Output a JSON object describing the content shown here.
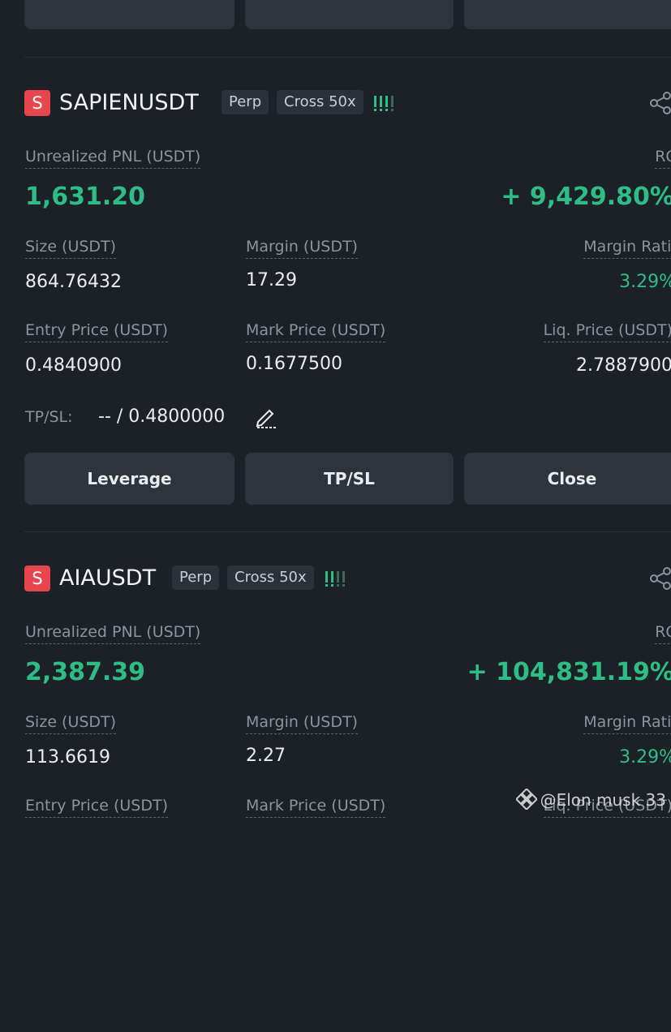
{
  "positions": [
    {
      "badge": "S",
      "symbol": "SAPIENUSDT",
      "contract_type": "Perp",
      "margin_mode": "Cross 50x",
      "pnl_label": "Unrealized PNL (USDT)",
      "pnl": "1,631.20",
      "roi_label": "ROI",
      "roi": "+ 9,429.80%",
      "fields": [
        {
          "label": "Size (USDT)",
          "value": "864.76432"
        },
        {
          "label": "Margin (USDT)",
          "value": "17.29"
        },
        {
          "label": "Margin Ratio",
          "value": "3.29%"
        },
        {
          "label": "Entry Price (USDT)",
          "value": "0.4840900"
        },
        {
          "label": "Mark Price (USDT)",
          "value": "0.1677500"
        },
        {
          "label": "Liq. Price (USDT)",
          "value": "2.7887900"
        }
      ],
      "tpsl_label": "TP/SL:",
      "tpsl_value": "-- / 0.4800000",
      "buttons": [
        "Leverage",
        "TP/SL",
        "Close"
      ]
    },
    {
      "badge": "S",
      "symbol": "AIAUSDT",
      "contract_type": "Perp",
      "margin_mode": "Cross 50x",
      "pnl_label": "Unrealized PNL (USDT)",
      "pnl": "2,387.39",
      "roi_label": "ROI",
      "roi": "+ 104,831.19%",
      "fields": [
        {
          "label": "Size (USDT)",
          "value": "113.6619"
        },
        {
          "label": "Margin (USDT)",
          "value": "2.27"
        },
        {
          "label": "Margin Ratio",
          "value": "3.29%"
        },
        {
          "label": "Entry Price (USDT)"
        },
        {
          "label": "Mark Price (USDT)"
        },
        {
          "label": "Liq. Price (USDT)"
        }
      ]
    }
  ],
  "watermark": "@Elon musk 33"
}
